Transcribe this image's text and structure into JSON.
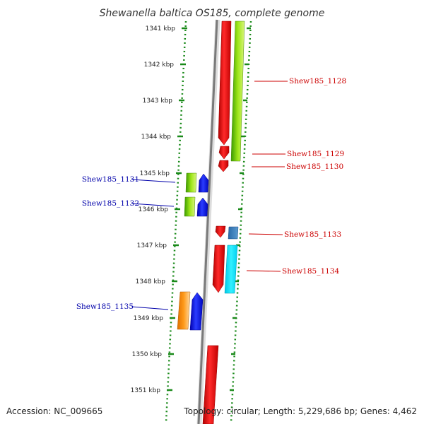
{
  "title": "Shewanella baltica OS185, complete genome",
  "footer": {
    "accession": "Accession: NC_009665",
    "topology": "Topology: circular; Length: 5,229,686 bp; Genes: 4,462"
  },
  "scale": {
    "ticks": [
      "1341 kbp",
      "1342 kbp",
      "1343 kbp",
      "1344 kbp",
      "1345 kbp",
      "1346 kbp",
      "1347 kbp",
      "1348 kbp",
      "1349 kbp",
      "1350 kbp",
      "1351 kbp"
    ]
  },
  "genes": {
    "right_labels": [
      "Shew185_1128",
      "Shew185_1129",
      "Shew185_1130",
      "Shew185_1133",
      "Shew185_1134"
    ],
    "left_labels": [
      "Shew185_1131",
      "Shew185_1132",
      "Shew185_1135"
    ]
  },
  "colors": {
    "forward_label": "#cc0000",
    "reverse_label": "#0000aa",
    "forward_gene": "#e00000",
    "reverse_gene": "#0a14e6",
    "track_line": "#888888",
    "dots": "#1a8a1a"
  }
}
